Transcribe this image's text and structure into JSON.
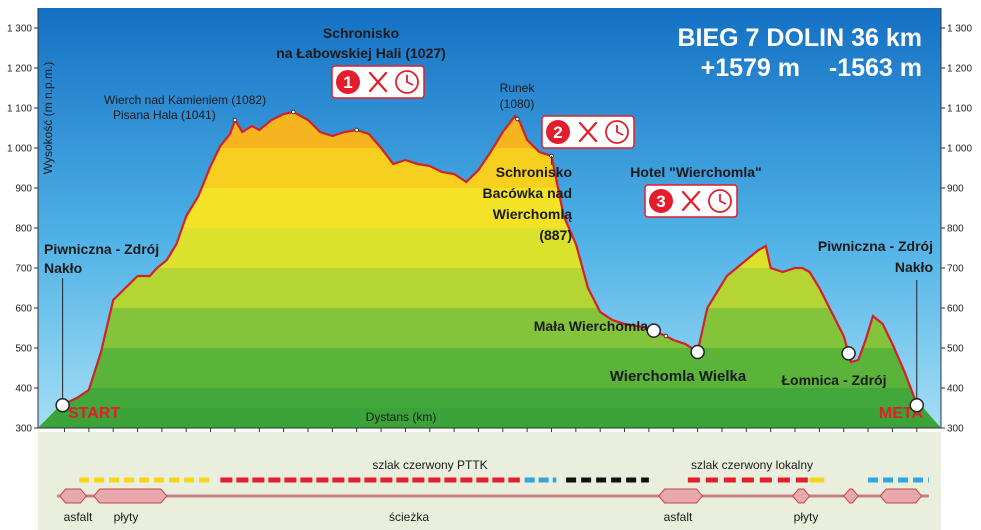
{
  "chart_data": {
    "type": "area",
    "title": "BIEG 7 DOLIN 36 km",
    "subtitle_up": "+1579 m",
    "subtitle_down": "-1563 m",
    "xlabel": "Dystans (km)",
    "ylabel": "Wysokość (m n.p.m.)",
    "xlim": [
      0,
      35
    ],
    "ylim": [
      300,
      1300
    ],
    "y_ticks": [
      "300",
      "400",
      "500",
      "600",
      "700",
      "800",
      "900",
      "1 000",
      "1 100",
      "1 200",
      "1 300"
    ],
    "x_ticks": [
      "0",
      "1",
      "2",
      "3",
      "4",
      "5",
      "6",
      "7",
      "8",
      "9",
      "10",
      "11",
      "12",
      "13",
      "14",
      "15",
      "16",
      "17",
      "18",
      "19",
      "20",
      "21",
      "22",
      "23",
      "24",
      "25",
      "26",
      "27",
      "28",
      "29",
      "30",
      "31",
      "32",
      "33",
      "34",
      "35"
    ],
    "series": [
      {
        "x": [
          -0.2,
          0,
          0.5,
          1,
          1.5,
          2,
          2.5,
          3,
          3.5,
          3.8,
          4.2,
          4.6,
          5,
          5.5,
          6,
          6.4,
          6.8,
          7,
          7.3,
          7.7,
          8,
          8.5,
          9,
          9.4,
          10,
          10.5,
          11,
          11.5,
          12,
          12.5,
          13,
          13.5,
          14,
          14.5,
          15,
          15.5,
          16,
          16.5,
          17,
          17.5,
          18,
          18.5,
          18.7,
          19,
          19.5,
          20,
          20.5,
          21,
          21.5,
          22,
          22.5,
          23,
          23.5,
          24,
          24.3,
          24.7,
          25,
          25.5,
          26,
          26.4,
          26.8,
          27.2,
          27.6,
          28,
          28.5,
          28.8,
          29,
          29.5,
          30,
          30.3,
          30.6,
          31,
          31.5,
          32,
          32.3,
          32.6,
          32.9,
          33.2,
          33.6,
          34,
          34.5,
          35,
          35.2
        ],
        "y": [
          355,
          360,
          375,
          395,
          490,
          620,
          650,
          680,
          680,
          700,
          720,
          760,
          830,
          880,
          955,
          1005,
          1035,
          1070,
          1040,
          1055,
          1045,
          1070,
          1085,
          1090,
          1070,
          1040,
          1030,
          1040,
          1045,
          1035,
          1000,
          960,
          970,
          960,
          955,
          940,
          935,
          915,
          945,
          990,
          1040,
          1080,
          1065,
          1020,
          990,
          980,
          830,
          760,
          650,
          590,
          570,
          560,
          555,
          550,
          540,
          530,
          520,
          510,
          490,
          600,
          640,
          680,
          700,
          720,
          745,
          755,
          700,
          690,
          700,
          700,
          690,
          650,
          590,
          530,
          465,
          470,
          520,
          580,
          560,
          510,
          440,
          360,
          355
        ],
        "start_label": "START",
        "end_label": "META"
      }
    ],
    "places": [
      {
        "km": 0.5,
        "name": "Piwniczna - Zdrój",
        "name2": "Nakło"
      },
      {
        "km": 6.8,
        "name": "Wierch nad Kamieniem (1082)",
        "name2": "Pisana Hala (1041)"
      },
      {
        "km": 12.0,
        "name": "Schronisko",
        "name2": "na Łabowskiej  Hali  (1027)"
      },
      {
        "km": 18.6,
        "name": "Runek",
        "name2": "(1080)"
      },
      {
        "km": 20.0,
        "name": "Schronisko",
        "name2": "Bacówka nad",
        "name3": "Wierchomlą",
        "name4": "(887)"
      },
      {
        "km": 24.2,
        "name": "Mała Wierchomla"
      },
      {
        "km": 25.9,
        "name": "Wierchomla Wielka"
      },
      {
        "km": 26.0,
        "name": "Hotel  \"Wierchomla\""
      },
      {
        "km": 32.3,
        "name": "Łomnica - Zdrój"
      },
      {
        "km": 35.0,
        "name": "Piwniczna - Zdrój",
        "name2": "Nakło"
      }
    ],
    "aid_stations": [
      {
        "number": "1",
        "km": 12.0
      },
      {
        "number": "2",
        "km": 20.0
      },
      {
        "number": "3",
        "km": 24.8
      }
    ],
    "trail_labels": {
      "left": "szlak czerwony PTTK",
      "right": "szlak czerwony lokalny"
    },
    "surface_labels": [
      {
        "text": "asfalt",
        "km": 0.3
      },
      {
        "text": "płyty",
        "km": 2.3
      },
      {
        "text": "ścieżka",
        "km": 14.5
      },
      {
        "text": "asfalt",
        "km": 25.2
      },
      {
        "text": "płyty",
        "km": 30.3
      }
    ],
    "colors": {
      "sky_top": "#1475c8",
      "sky_bottom": "#8fd6f2",
      "profile_line": "#d4202a",
      "accent_red": "#e41d2b"
    }
  }
}
